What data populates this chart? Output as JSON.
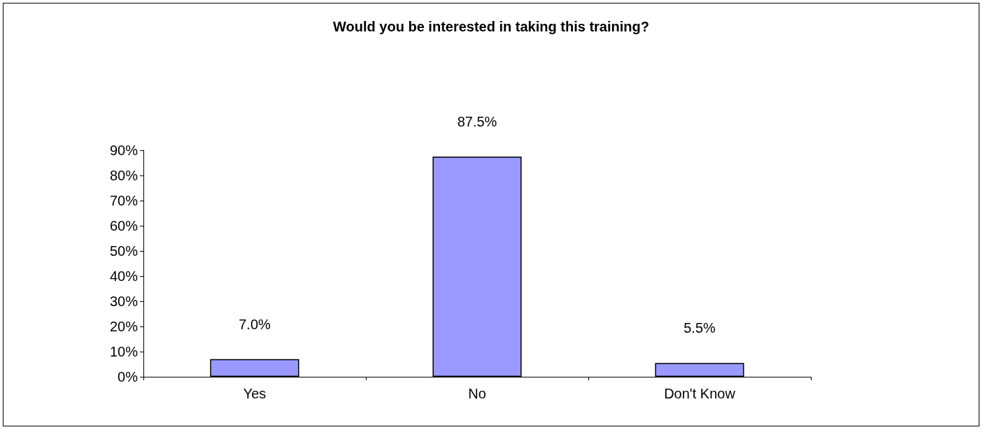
{
  "chart_data": {
    "type": "bar",
    "title": "Would you be interested in taking this training?",
    "categories": [
      "Yes",
      "No",
      "Don't Know"
    ],
    "values": [
      7.0,
      87.5,
      5.5
    ],
    "value_labels": [
      "7.0%",
      "87.5%",
      "5.5%"
    ],
    "color": "#9999ff",
    "ylim": [
      0,
      90
    ],
    "yticks": [
      {
        "value": 0,
        "label": "0%"
      },
      {
        "value": 10,
        "label": "10%"
      },
      {
        "value": 20,
        "label": "20%"
      },
      {
        "value": 30,
        "label": "30%"
      },
      {
        "value": 40,
        "label": "40%"
      },
      {
        "value": 50,
        "label": "50%"
      },
      {
        "value": 60,
        "label": "60%"
      },
      {
        "value": 70,
        "label": "70%"
      },
      {
        "value": 80,
        "label": "80%"
      },
      {
        "value": 90,
        "label": "90%"
      }
    ],
    "grid": false
  }
}
